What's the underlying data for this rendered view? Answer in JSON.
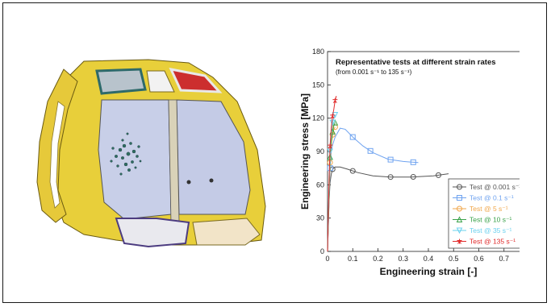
{
  "figure": {
    "left_image": "helicopter-cockpit-bird-strike-fe-model"
  },
  "chart_data": {
    "type": "line",
    "title": "Representative tests at different strain rates",
    "subtitle": "(from 0.001 s⁻¹ to 135 s⁻¹)",
    "xlabel": "Engineering strain [-]",
    "ylabel": "Engineering stress [MPa]",
    "xlim": [
      0,
      0.8
    ],
    "ylim": [
      0,
      180
    ],
    "xticks": [
      "0",
      "0.1",
      "0.2",
      "0.3",
      "0.4",
      "0.5",
      "0.6",
      "0.7",
      "0.8"
    ],
    "yticks": [
      "0",
      "30",
      "60",
      "90",
      "120",
      "150",
      "180"
    ],
    "grid": false,
    "legend_position": "bottom-right",
    "series": [
      {
        "name": "Test @ 0.001 s⁻¹",
        "color": "#555555",
        "marker": "circle",
        "x": [
          0,
          0.003,
          0.006,
          0.01,
          0.015,
          0.02,
          0.03,
          0.05,
          0.08,
          0.12,
          0.18,
          0.25,
          0.33,
          0.42,
          0.48
        ],
        "y": [
          0,
          20,
          45,
          62,
          70,
          74,
          76,
          76,
          74,
          71,
          68,
          67,
          67,
          68,
          70
        ],
        "marker_x": [
          0.02,
          0.1,
          0.25,
          0.34,
          0.44
        ]
      },
      {
        "name": "Test @ 0.1 s⁻¹",
        "color": "#6fa3f0",
        "marker": "square",
        "x": [
          0,
          0.005,
          0.01,
          0.015,
          0.02,
          0.03,
          0.05,
          0.07,
          0.1,
          0.14,
          0.18,
          0.24,
          0.3,
          0.36
        ],
        "y": [
          0,
          40,
          75,
          90,
          96,
          103,
          111,
          110,
          103,
          95,
          89,
          83,
          81,
          80
        ],
        "marker_x": [
          0.01,
          0.1,
          0.17,
          0.25,
          0.34
        ]
      },
      {
        "name": "Test @ 5 s⁻¹",
        "color": "#f0a64a",
        "marker": "circle",
        "x": [
          0,
          0.005,
          0.01,
          0.015,
          0.02,
          0.025,
          0.03
        ],
        "y": [
          0,
          40,
          80,
          95,
          105,
          110,
          112
        ],
        "marker_x": [
          0.01,
          0.02,
          0.03
        ]
      },
      {
        "name": "Test @ 10 s⁻¹",
        "color": "#3aa24a",
        "marker": "triangle",
        "x": [
          0,
          0.005,
          0.01,
          0.015,
          0.02,
          0.025,
          0.03
        ],
        "y": [
          0,
          45,
          85,
          100,
          108,
          113,
          116
        ],
        "marker_x": [
          0.01,
          0.02,
          0.03
        ]
      },
      {
        "name": "Test @ 35 s⁻¹",
        "color": "#6ad0ee",
        "marker": "triangle-down",
        "x": [
          0,
          0.005,
          0.01,
          0.015,
          0.02,
          0.025,
          0.03
        ],
        "y": [
          0,
          50,
          90,
          108,
          116,
          120,
          123
        ],
        "marker_x": [
          0.01,
          0.02,
          0.03
        ]
      },
      {
        "name": "Test @ 135 s⁻¹",
        "color": "#e02a2a",
        "marker": "star",
        "x": [
          0,
          0.005,
          0.01,
          0.015,
          0.02,
          0.025,
          0.03,
          0.035
        ],
        "y": [
          0,
          55,
          95,
          112,
          122,
          128,
          136,
          140
        ],
        "marker_x": [
          0.01,
          0.02,
          0.03
        ]
      }
    ]
  }
}
